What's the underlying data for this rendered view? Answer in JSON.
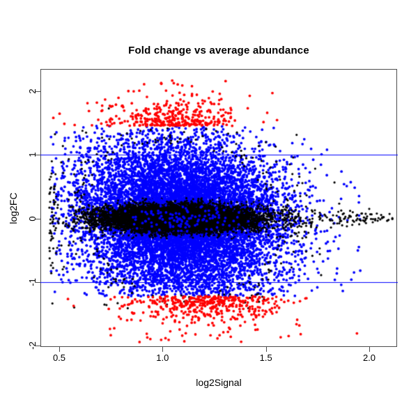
{
  "title": {
    "text": "Fold change vs average abundance"
  },
  "axes": {
    "xlabel": "log2Signal",
    "ylabel": "log2FC",
    "x_ticks": [
      {
        "value": 0.5,
        "label": "0.5"
      },
      {
        "value": 1.0,
        "label": "1.0"
      },
      {
        "value": 1.5,
        "label": "1.5"
      },
      {
        "value": 2.0,
        "label": "2.0"
      }
    ],
    "y_ticks": [
      {
        "value": -2,
        "label": "-2"
      },
      {
        "value": -1,
        "label": "-1"
      },
      {
        "value": 0,
        "label": "0"
      },
      {
        "value": 1,
        "label": "1"
      },
      {
        "value": 2,
        "label": "2"
      }
    ]
  },
  "chart_data": {
    "type": "scatter",
    "title": "Fold change vs average abundance",
    "xlabel": "log2Signal",
    "ylabel": "log2FC",
    "xlim": [
      0.41,
      2.13
    ],
    "ylim": [
      -2.02,
      2.36
    ],
    "x_ticks": [
      0.5,
      1.0,
      1.5,
      2.0
    ],
    "y_ticks": [
      -2,
      -1,
      0,
      1,
      2
    ],
    "grid": false,
    "legend": "none",
    "hlines": {
      "values": [
        1,
        -1
      ],
      "color": "#0000ff",
      "width": 1
    },
    "colors": {
      "not_significant": "#000000",
      "significant": "#0000ff",
      "strong_fold_change": "#ff0000",
      "frame": "#4d4d4d",
      "background": "#ffffff"
    },
    "point_radius": {
      "blue": 1.9,
      "black": 1.6,
      "red": 1.9
    },
    "generator": {
      "seed": 7,
      "cloud": {
        "n": 11000,
        "x_mean": 1.09,
        "x_sd": 0.245,
        "x_min": 0.46,
        "x_max": 1.97,
        "y_sd": 0.615,
        "tilt": -0.06,
        "y_min": -1.95,
        "y_max": 2.2,
        "overlay_lo": 0.26,
        "overlay_hi": 0.5,
        "overlay_frac": 0.08
      },
      "core": {
        "n": 8000,
        "x_mean": 1.07,
        "x_sd": 0.19,
        "x_min": 0.56,
        "x_max": 1.8,
        "y_sd": 0.105,
        "y_clip": 0.32,
        "clip_shrink": 0.35
      },
      "band_sprinkle": {
        "n": 120,
        "x_mean": 1.07,
        "x_sd": 0.19,
        "y_sd": 0.1
      },
      "rim": {
        "n": 200,
        "r_min": 1.85,
        "x_mean": 1.09,
        "x_sd": 0.25,
        "y_sd": 0.63,
        "tilt": -0.06,
        "x_min": 0.46,
        "x_max": 1.95,
        "y_abs_min": 0.28,
        "y_abs_max": 1.42
      },
      "left_tail": {
        "n": 70,
        "x_base": 0.452,
        "x_span": 0.13,
        "y_sd": 0.4,
        "y_clip": 0.9
      },
      "right_tail": {
        "n": 150,
        "x_base": 1.58,
        "x_span": 0.55,
        "pow": 1.5,
        "y_sd": 0.14,
        "y_shrink": 0.8
      },
      "red_up": {
        "threshold": 1.455,
        "n": 280,
        "x_mean": 1.06,
        "x_sd": 0.145,
        "x_min": 0.7,
        "x_max": 1.38,
        "decay": 0.17,
        "y_lim": 2.18
      },
      "red_down": {
        "threshold": -1.225,
        "n": 220,
        "x_mean": 1.27,
        "x_sd": 0.15,
        "x_min": 0.99,
        "x_max": 1.72,
        "decay": 0.155,
        "y_lim": -1.92
      }
    },
    "stray_points": [
      {
        "x": 0.705,
        "y": 1.69,
        "color": "#ff0000"
      },
      {
        "x": 0.74,
        "y": 1.73,
        "color": "#000000"
      },
      {
        "x": 0.63,
        "y": 1.35,
        "color": "#000000"
      },
      {
        "x": 1.305,
        "y": 2.16,
        "color": "#ff0000"
      },
      {
        "x": 1.61,
        "y": -1.85,
        "color": "#ff0000"
      },
      {
        "x": 2.07,
        "y": 0.02,
        "color": "#000000"
      },
      {
        "x": 2.0,
        "y": 0.15,
        "color": "#000000"
      },
      {
        "x": 1.95,
        "y": -0.45,
        "color": "#0000ff"
      }
    ]
  }
}
